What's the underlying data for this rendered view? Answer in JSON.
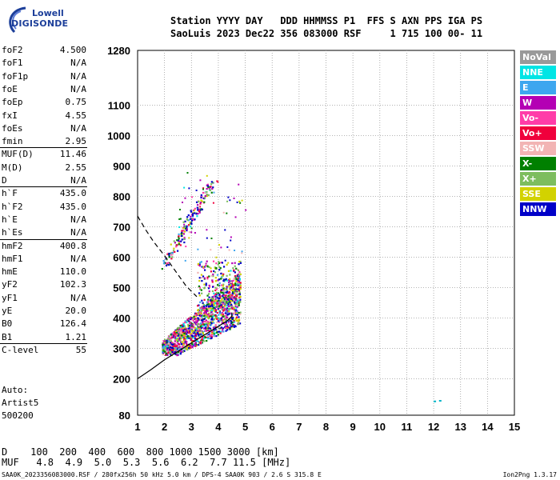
{
  "logo": {
    "line1": "Lowell",
    "line2": "DIGISONDE"
  },
  "header": {
    "line1": "Station YYYY DAY   DDD HHMMSS P1  FFS S AXN PPS IGA PS",
    "line2": "SaoLuis 2023 Dec22 356 083000 RSF     1 715 100 00- 11"
  },
  "params": [
    {
      "label": "foF2",
      "value": "4.500"
    },
    {
      "label": "foF1",
      "value": "N/A"
    },
    {
      "label": "foF1p",
      "value": "N/A"
    },
    {
      "label": "foE",
      "value": "N/A"
    },
    {
      "label": "foEp",
      "value": "0.75"
    },
    {
      "label": "fxI",
      "value": "4.55"
    },
    {
      "label": "foEs",
      "value": "N/A"
    },
    {
      "label": "fmin",
      "value": "2.95"
    },
    {
      "label": "MUF(D)",
      "value": "11.46"
    },
    {
      "label": "M(D)",
      "value": "2.55"
    },
    {
      "label": "D",
      "value": "N/A"
    },
    {
      "label": "h`F",
      "value": "435.0"
    },
    {
      "label": "h`F2",
      "value": "435.0"
    },
    {
      "label": "h`E",
      "value": "N/A"
    },
    {
      "label": "h`Es",
      "value": "N/A"
    },
    {
      "label": "hmF2",
      "value": "400.8"
    },
    {
      "label": "hmF1",
      "value": "N/A"
    },
    {
      "label": "hmE",
      "value": "110.0"
    },
    {
      "label": "yF2",
      "value": "102.3"
    },
    {
      "label": "yF1",
      "value": "N/A"
    },
    {
      "label": "yE",
      "value": "20.0"
    },
    {
      "label": "B0",
      "value": "126.4"
    },
    {
      "label": "B1",
      "value": "1.21"
    },
    {
      "label": "C-level",
      "value": "55"
    }
  ],
  "auto": [
    "Auto:",
    "Artist5",
    "500200"
  ],
  "legend": [
    {
      "label": "NoVal",
      "color": "#999999"
    },
    {
      "label": "NNE",
      "color": "#00e5e5"
    },
    {
      "label": "E",
      "color": "#3ea6ef"
    },
    {
      "label": "W",
      "color": "#b400b4"
    },
    {
      "label": "Vo-",
      "color": "#ff3ca8"
    },
    {
      "label": "Vo+",
      "color": "#f0003c"
    },
    {
      "label": "SSW",
      "color": "#f2b4b4"
    },
    {
      "label": "X-",
      "color": "#008000"
    },
    {
      "label": "X+",
      "color": "#7dbd5e"
    },
    {
      "label": "SSE",
      "color": "#d2d200"
    },
    {
      "label": "NNW",
      "color": "#0000c8"
    }
  ],
  "bottom": {
    "d_row": "D    100  200  400  600  800 1000 1500 3000 [km]",
    "muf_row": "MUF   4.8  4.9  5.0  5.3  5.6  6.2  7.7 11.5 [MHz]"
  },
  "footer": {
    "left": "SAA0K_2023356083000.RSF / 280fx256h 50 kHz 5.0 km / DPS-4 SAA0K 903 / 2.6 S 315.8 E",
    "right": "Ion2Png 1.3.17"
  },
  "chart_data": {
    "type": "scatter",
    "xlim": [
      1,
      15
    ],
    "ylim": [
      80,
      1280
    ],
    "x_ticks": [
      "1",
      "2",
      "3",
      "4",
      "5",
      "6",
      "7",
      "8",
      "9",
      "10",
      "11",
      "12",
      "13",
      "14",
      "15"
    ],
    "y_ticks": [
      {
        "value": 80,
        "label": "80"
      },
      {
        "value": 200,
        "label": "200"
      },
      {
        "value": 300,
        "label": "300"
      },
      {
        "value": 400,
        "label": "400"
      },
      {
        "value": 500,
        "label": "500"
      },
      {
        "value": 600,
        "label": "600"
      },
      {
        "value": 700,
        "label": "700"
      },
      {
        "value": 800,
        "label": "800"
      },
      {
        "value": 900,
        "label": "900"
      },
      {
        "value": 1000,
        "label": "1000"
      },
      {
        "value": 1100,
        "label": "1100"
      },
      {
        "value": 1280,
        "label": "1280"
      }
    ],
    "grid_x": [
      2,
      3,
      4,
      5,
      6,
      7,
      8,
      9,
      10,
      11,
      12,
      13,
      14
    ],
    "grid_y": [
      200,
      300,
      400,
      500,
      600,
      700,
      800,
      900,
      1000,
      1100
    ],
    "profile_solid": [
      [
        1.0,
        200
      ],
      [
        1.5,
        230
      ],
      [
        2.0,
        262
      ],
      [
        2.5,
        290
      ],
      [
        3.0,
        318
      ],
      [
        3.5,
        345
      ],
      [
        4.0,
        372
      ],
      [
        4.35,
        392
      ],
      [
        4.5,
        405
      ],
      [
        4.5,
        418
      ]
    ],
    "profile_dashed": [
      [
        1.0,
        735
      ],
      [
        1.3,
        690
      ],
      [
        1.6,
        650
      ],
      [
        2.0,
        605
      ],
      [
        2.4,
        555
      ],
      [
        2.8,
        505
      ],
      [
        3.2,
        470
      ]
    ],
    "echo_clusters": [
      {
        "x": [
          1.9,
          3.9
        ],
        "y": [
          285,
          440
        ]
      },
      {
        "x": [
          2.8,
          4.9
        ],
        "y": [
          380,
          540
        ]
      },
      {
        "x": [
          3.2,
          4.4
        ],
        "y": [
          520,
          620
        ]
      },
      {
        "x": [
          2.0,
          3.6
        ],
        "y": [
          580,
          720
        ]
      },
      {
        "x": [
          3.3,
          3.9
        ],
        "y": [
          700,
          850
        ]
      }
    ],
    "isolated_echoes": [
      [
        12.0,
        128
      ],
      [
        12.2,
        130
      ]
    ]
  }
}
